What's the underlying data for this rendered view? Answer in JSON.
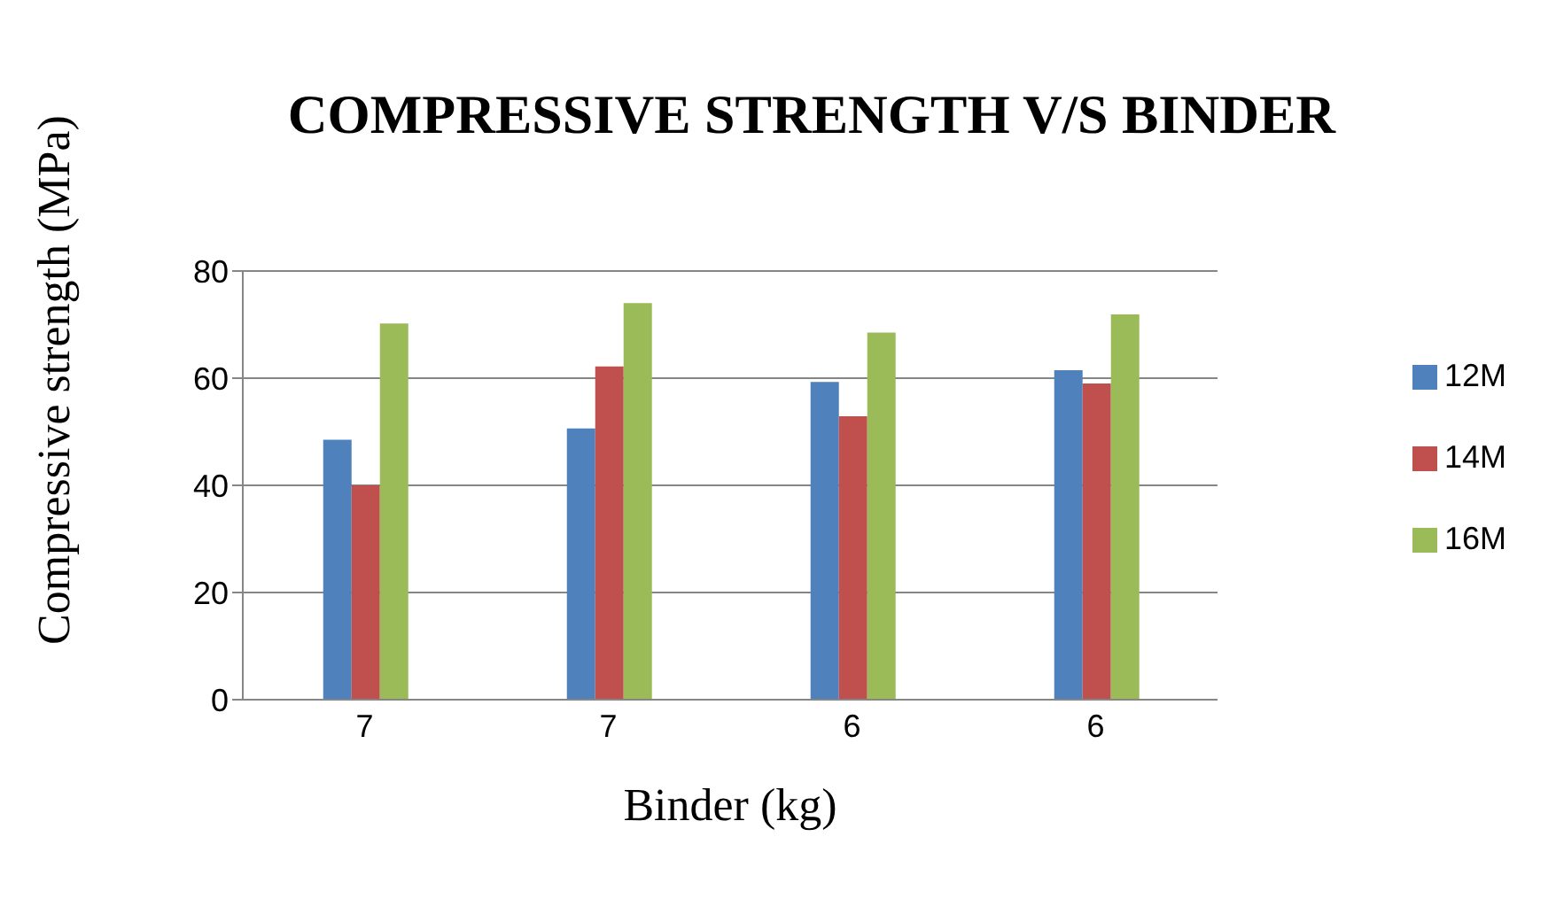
{
  "chart_data": {
    "type": "bar",
    "title": "COMPRESSIVE STRENGTH V/S BINDER",
    "xlabel": "Binder (kg)",
    "ylabel": "Compressive strength (MPa)",
    "categories": [
      "7",
      "7",
      "6",
      "6"
    ],
    "series": [
      {
        "name": "12M",
        "color": "#4f81bd",
        "values": [
          48.5,
          50.6,
          59.3,
          61.5
        ]
      },
      {
        "name": "14M",
        "color": "#c0504d",
        "values": [
          40,
          62.2,
          52.9,
          59
        ]
      },
      {
        "name": "16M",
        "color": "#9bbb59",
        "values": [
          70.2,
          74,
          68.5,
          71.9
        ]
      }
    ],
    "ylim": [
      0,
      80
    ],
    "yticks": [
      0,
      20,
      40,
      60,
      80
    ],
    "grid": "y",
    "legend": "right"
  }
}
